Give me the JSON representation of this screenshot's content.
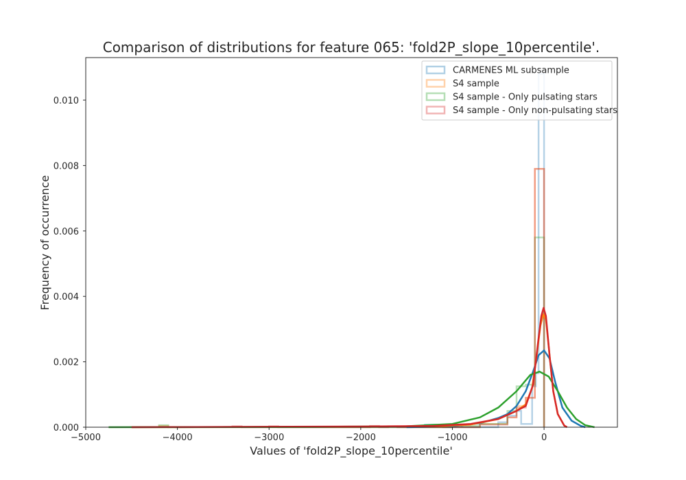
{
  "chart_data": {
    "type": "histogram+kde",
    "title": "Comparison of distributions for feature 065: 'fold2P_slope_10percentile'.",
    "xlabel": "Values of 'fold2P_slope_10percentile'",
    "ylabel": "Frequency of occurrence",
    "xlim": [
      -5000,
      800
    ],
    "ylim": [
      0,
      0.0113
    ],
    "xticks": [
      -5000,
      -4000,
      -3000,
      -2000,
      -1000,
      0
    ],
    "xtick_labels": [
      "−5000",
      "−4000",
      "−3000",
      "−2000",
      "−1000",
      "0"
    ],
    "yticks": [
      0,
      0.002,
      0.004,
      0.006,
      0.008,
      0.01
    ],
    "ytick_labels": [
      "0.000",
      "0.002",
      "0.004",
      "0.006",
      "0.008",
      "0.010"
    ],
    "grid": false,
    "legend_position": "top-right",
    "series": [
      {
        "name": "CARMENES ML subsample",
        "color": "#1f77b4",
        "hist_steps": [
          [
            -1300,
            0
          ],
          [
            -1300,
            8e-05
          ],
          [
            -1200,
            8e-05
          ],
          [
            -1200,
            8e-05
          ],
          [
            -1100,
            8e-05
          ],
          [
            -1100,
            0
          ],
          [
            -500,
            0
          ],
          [
            -500,
            0.00015
          ],
          [
            -400,
            0.00015
          ],
          [
            -400,
            0.00035
          ],
          [
            -300,
            0.00035
          ],
          [
            -300,
            0.0005
          ],
          [
            -250,
            0.0005
          ],
          [
            -250,
            0.0001
          ],
          [
            -130,
            0.0001
          ],
          [
            -130,
            0.00125
          ],
          [
            -90,
            0.00125
          ],
          [
            -90,
            0.00165
          ],
          [
            -60,
            0.00165
          ],
          [
            -60,
            0.0108
          ],
          [
            0,
            0.0108
          ],
          [
            0,
            0
          ]
        ],
        "kde": [
          [
            -1500,
            0
          ],
          [
            -1000,
            3e-05
          ],
          [
            -700,
            0.00012
          ],
          [
            -500,
            0.00028
          ],
          [
            -400,
            0.0004
          ],
          [
            -300,
            0.00065
          ],
          [
            -200,
            0.0011
          ],
          [
            -120,
            0.0017
          ],
          [
            -60,
            0.0022
          ],
          [
            0,
            0.00235
          ],
          [
            60,
            0.0021
          ],
          [
            120,
            0.0014
          ],
          [
            200,
            0.0006
          ],
          [
            300,
            0.0002
          ],
          [
            400,
            4e-05
          ],
          [
            450,
            0
          ]
        ]
      },
      {
        "name": "S4 sample",
        "color": "#ff7f0e",
        "hist_steps": [
          [
            -4200,
            0
          ],
          [
            -4200,
            4e-05
          ],
          [
            -4100,
            4e-05
          ],
          [
            -4100,
            0
          ],
          [
            -700,
            0
          ],
          [
            -700,
            0.0001
          ],
          [
            -400,
            0.0001
          ],
          [
            -400,
            0.0003
          ],
          [
            -300,
            0.0003
          ],
          [
            -300,
            0.00065
          ],
          [
            -200,
            0.00065
          ],
          [
            -200,
            0.0009
          ],
          [
            -100,
            0.0009
          ],
          [
            -100,
            0.0079
          ],
          [
            0,
            0.0079
          ],
          [
            0,
            0
          ]
        ],
        "kde": [
          [
            -4500,
            0
          ],
          [
            -2000,
            1e-05
          ],
          [
            -1200,
            2e-05
          ],
          [
            -800,
            8e-05
          ],
          [
            -500,
            0.00025
          ],
          [
            -300,
            0.0005
          ],
          [
            -200,
            0.0007
          ],
          [
            -130,
            0.0012
          ],
          [
            -80,
            0.0022
          ],
          [
            -40,
            0.0031
          ],
          [
            -10,
            0.00345
          ],
          [
            20,
            0.0033
          ],
          [
            60,
            0.0022
          ],
          [
            100,
            0.0011
          ],
          [
            150,
            0.0004
          ],
          [
            220,
            5e-05
          ],
          [
            250,
            0
          ]
        ]
      },
      {
        "name": "S4 sample - Only pulsating stars",
        "color": "#2ca02c",
        "hist_steps": [
          [
            -4200,
            0
          ],
          [
            -4200,
            6e-05
          ],
          [
            -4100,
            6e-05
          ],
          [
            -4100,
            0
          ],
          [
            -1000,
            0
          ],
          [
            -1000,
            8e-05
          ],
          [
            -900,
            8e-05
          ],
          [
            -900,
            4e-05
          ],
          [
            -700,
            4e-05
          ],
          [
            -700,
            0.0001
          ],
          [
            -400,
            0.0001
          ],
          [
            -400,
            0.0005
          ],
          [
            -300,
            0.0005
          ],
          [
            -300,
            0.00125
          ],
          [
            -200,
            0.00125
          ],
          [
            -200,
            0.0013
          ],
          [
            -100,
            0.0013
          ],
          [
            -100,
            0.0058
          ],
          [
            0,
            0.0058
          ],
          [
            0,
            0
          ]
        ],
        "kde": [
          [
            -4750,
            0
          ],
          [
            -2500,
            1e-05
          ],
          [
            -1500,
            3e-05
          ],
          [
            -1000,
            0.0001
          ],
          [
            -700,
            0.0003
          ],
          [
            -500,
            0.0006
          ],
          [
            -300,
            0.0011
          ],
          [
            -150,
            0.0016
          ],
          [
            -50,
            0.0017
          ],
          [
            50,
            0.00155
          ],
          [
            150,
            0.0011
          ],
          [
            250,
            0.0006
          ],
          [
            350,
            0.00025
          ],
          [
            450,
            6e-05
          ],
          [
            550,
            0
          ]
        ]
      },
      {
        "name": "S4 sample - Only non-pulsating stars",
        "color": "#d62728",
        "hist_steps": [
          [
            -3400,
            0
          ],
          [
            -3400,
            3e-05
          ],
          [
            -3300,
            3e-05
          ],
          [
            -3300,
            0
          ],
          [
            -3000,
            0
          ],
          [
            -3000,
            3e-05
          ],
          [
            -2900,
            3e-05
          ],
          [
            -2900,
            0
          ],
          [
            -1900,
            0
          ],
          [
            -1900,
            4e-05
          ],
          [
            -1800,
            4e-05
          ],
          [
            -1800,
            0
          ],
          [
            -1700,
            0
          ],
          [
            -1700,
            3e-05
          ],
          [
            -1600,
            3e-05
          ],
          [
            -1600,
            0
          ],
          [
            -700,
            0
          ],
          [
            -700,
            8e-05
          ],
          [
            -400,
            8e-05
          ],
          [
            -400,
            0.0003
          ],
          [
            -300,
            0.0003
          ],
          [
            -300,
            0.0006
          ],
          [
            -200,
            0.0006
          ],
          [
            -200,
            0.0009
          ],
          [
            -100,
            0.0009
          ],
          [
            -100,
            0.0079
          ],
          [
            0,
            0.0079
          ],
          [
            0,
            0
          ]
        ],
        "kde": [
          [
            -4500,
            0
          ],
          [
            -2000,
            2e-05
          ],
          [
            -1200,
            4e-05
          ],
          [
            -800,
            0.0001
          ],
          [
            -500,
            0.00025
          ],
          [
            -300,
            0.0005
          ],
          [
            -200,
            0.00065
          ],
          [
            -120,
            0.0013
          ],
          [
            -70,
            0.0025
          ],
          [
            -30,
            0.0034
          ],
          [
            -5,
            0.00365
          ],
          [
            20,
            0.0034
          ],
          [
            60,
            0.0022
          ],
          [
            100,
            0.0011
          ],
          [
            150,
            0.0004
          ],
          [
            220,
            5e-05
          ],
          [
            250,
            0
          ]
        ]
      }
    ]
  }
}
